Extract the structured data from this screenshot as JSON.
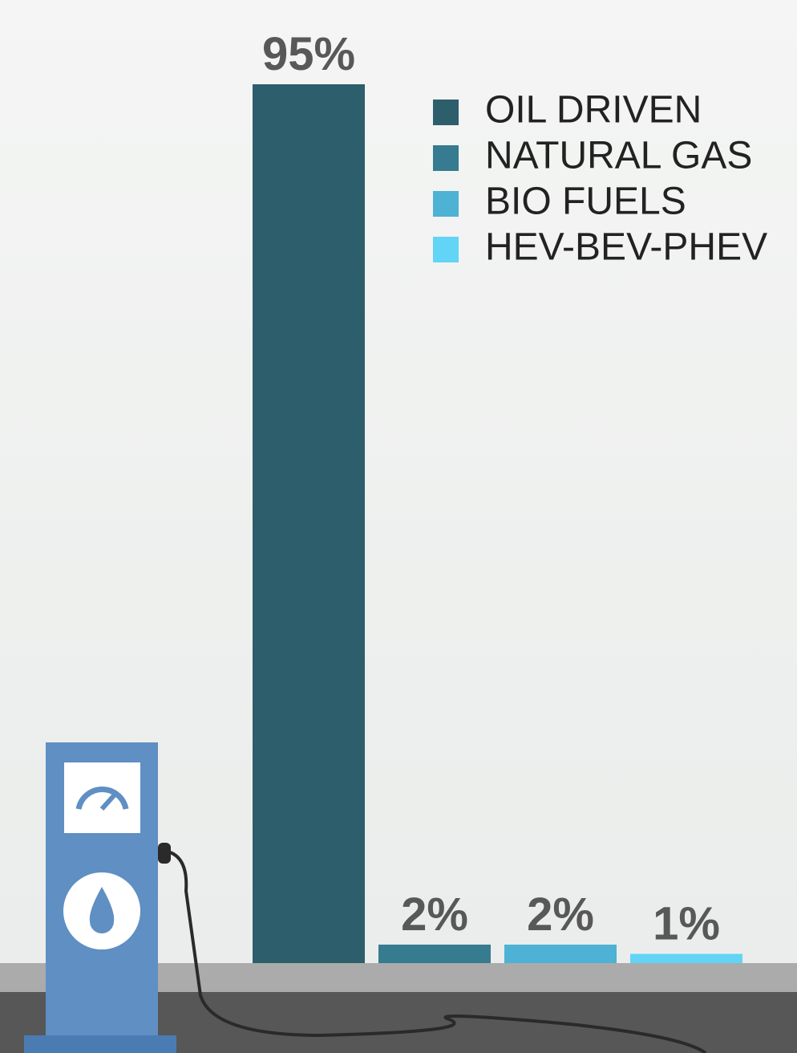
{
  "chart_data": {
    "type": "bar",
    "categories": [
      "OIL DRIVEN",
      "NATURAL GAS",
      "BIO FUELS",
      "HEV-BEV-PHEV"
    ],
    "values": [
      95,
      2,
      2,
      1
    ],
    "value_labels": [
      "95%",
      "2%",
      "2%",
      "1%"
    ],
    "colors": [
      "#2d5e6c",
      "#367b8f",
      "#4db2d4",
      "#62d4f6"
    ],
    "legend": "top-right"
  }
}
